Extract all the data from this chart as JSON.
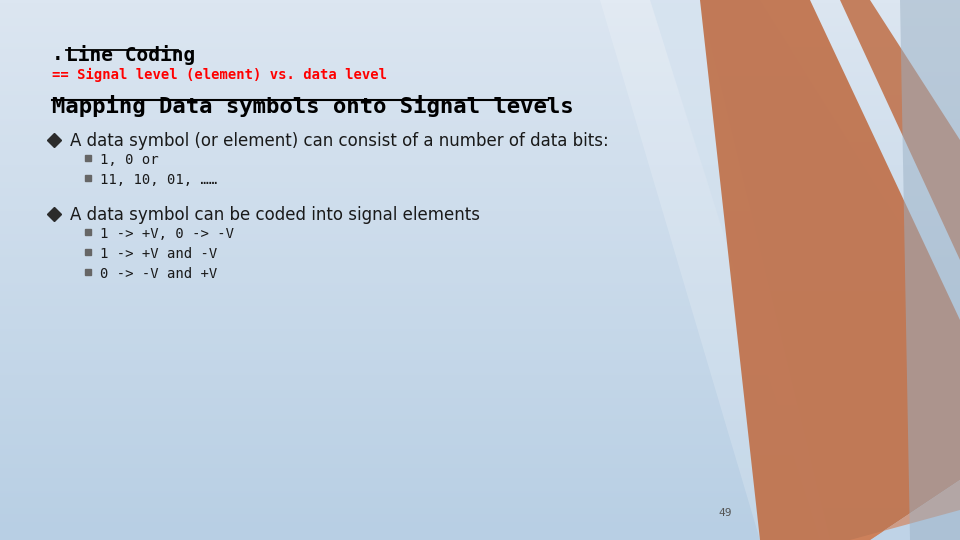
{
  "title_dot": ". ",
  "title_text": "Line Coding",
  "subtitle": "== Signal level (element) vs. data level",
  "heading": "Mapping Data symbols onto Signal levels",
  "bullet1": "A data symbol (or element) can consist of a number of data bits:",
  "sub_bullet1a": "1, 0 or",
  "sub_bullet1b": "11, 10, 01, ……",
  "bullet2": "A data symbol can be coded into signal elements",
  "sub_bullet2a": "1 -> +V, 0 -> -V",
  "sub_bullet2b": "1 -> +V and -V",
  "sub_bullet2c": "0 -> -V and +V",
  "page_number": "49",
  "bg_color_top": "#dce6f1",
  "bg_color_bottom": "#b8cfe4",
  "title_color": "#000000",
  "subtitle_color": "#ff0000",
  "heading_color": "#000000",
  "body_color": "#1a1a1a",
  "diamond_color": "#2b2b2b",
  "square_bullet_color": "#666666",
  "orange_color": "#c0714a",
  "light_blue1": "#c5d8ea",
  "light_blue2": "#b0c8de",
  "right_blue": "#9ab0c4"
}
